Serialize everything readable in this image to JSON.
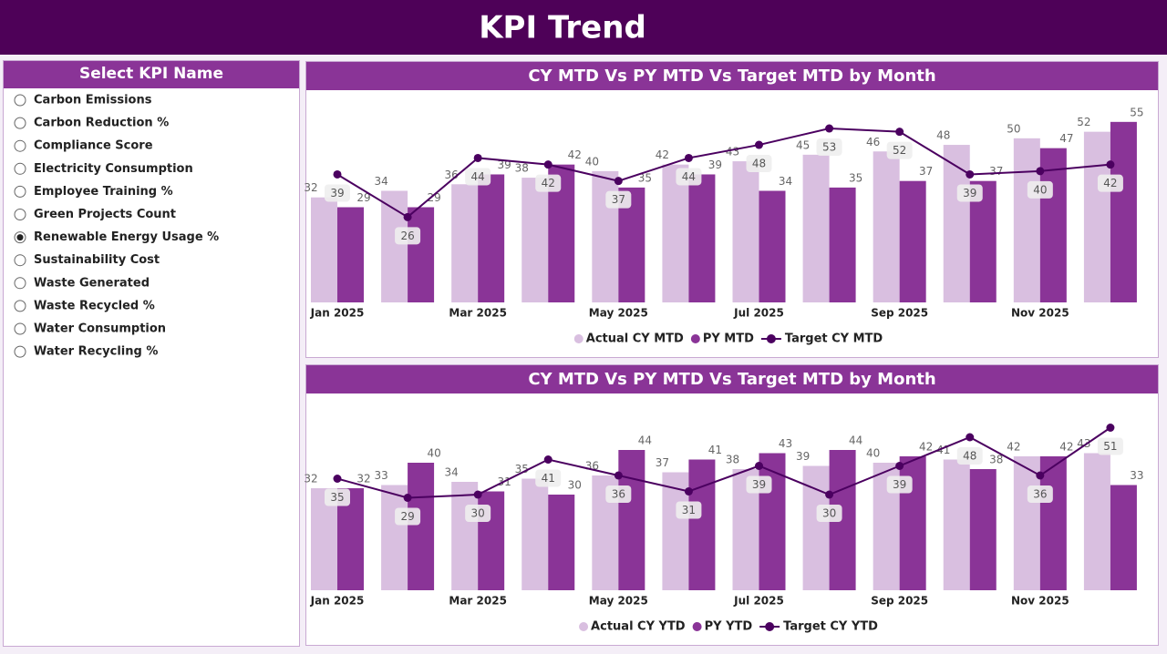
{
  "header": {
    "title": "KPI Trend"
  },
  "slicer": {
    "title": "Select KPI Name",
    "selected": 6,
    "options": [
      "Carbon Emissions",
      "Carbon Reduction %",
      "Compliance Score",
      "Electricity Consumption",
      "Employee Training %",
      "Green Projects Count",
      "Renewable Energy Usage %",
      "Sustainability Cost",
      "Waste Generated",
      "Waste Recycled %",
      "Water Consumption",
      "Water Recycling %"
    ]
  },
  "chart_data": [
    {
      "type": "combo",
      "title": "CY MTD Vs PY MTD Vs Target MTD by Month",
      "categories": [
        "Jan 2025",
        null,
        "Mar 2025",
        null,
        "May 2025",
        null,
        "Jul 2025",
        null,
        "Sep 2025",
        null,
        "Nov 2025",
        null
      ],
      "ylim": [
        0,
        63
      ],
      "series": [
        {
          "name": "Actual CY MTD",
          "type": "bar",
          "color": "#d9bfe0",
          "values": [
            32,
            34,
            36,
            38,
            40,
            42,
            43,
            45,
            46,
            48,
            50,
            52
          ]
        },
        {
          "name": "PY MTD",
          "type": "bar",
          "color": "#8a3497",
          "values": [
            29,
            29,
            39,
            42,
            35,
            39,
            34,
            35,
            37,
            37,
            47,
            55
          ]
        },
        {
          "name": "Target CY MTD",
          "type": "line",
          "color": "#4b0060",
          "values": [
            39,
            26,
            44,
            42,
            37,
            44,
            48,
            53,
            52,
            39,
            40,
            42
          ]
        }
      ]
    },
    {
      "type": "combo",
      "title": "CY MTD Vs PY MTD Vs Target MTD by Month",
      "categories": [
        "Jan 2025",
        null,
        "Mar 2025",
        null,
        "May 2025",
        null,
        "Jul 2025",
        null,
        "Sep 2025",
        null,
        "Nov 2025",
        null
      ],
      "ylim": [
        0,
        60
      ],
      "series": [
        {
          "name": "Actual CY YTD",
          "type": "bar",
          "color": "#d9bfe0",
          "values": [
            32,
            33,
            34,
            35,
            36,
            37,
            38,
            39,
            40,
            41,
            42,
            43
          ]
        },
        {
          "name": "PY YTD",
          "type": "bar",
          "color": "#8a3497",
          "values": [
            32,
            40,
            31,
            30,
            44,
            41,
            43,
            44,
            42,
            38,
            42,
            33
          ]
        },
        {
          "name": "Target CY YTD",
          "type": "line",
          "color": "#4b0060",
          "values": [
            35,
            29,
            30,
            41,
            36,
            31,
            39,
            30,
            39,
            48,
            36,
            51
          ]
        }
      ]
    }
  ]
}
